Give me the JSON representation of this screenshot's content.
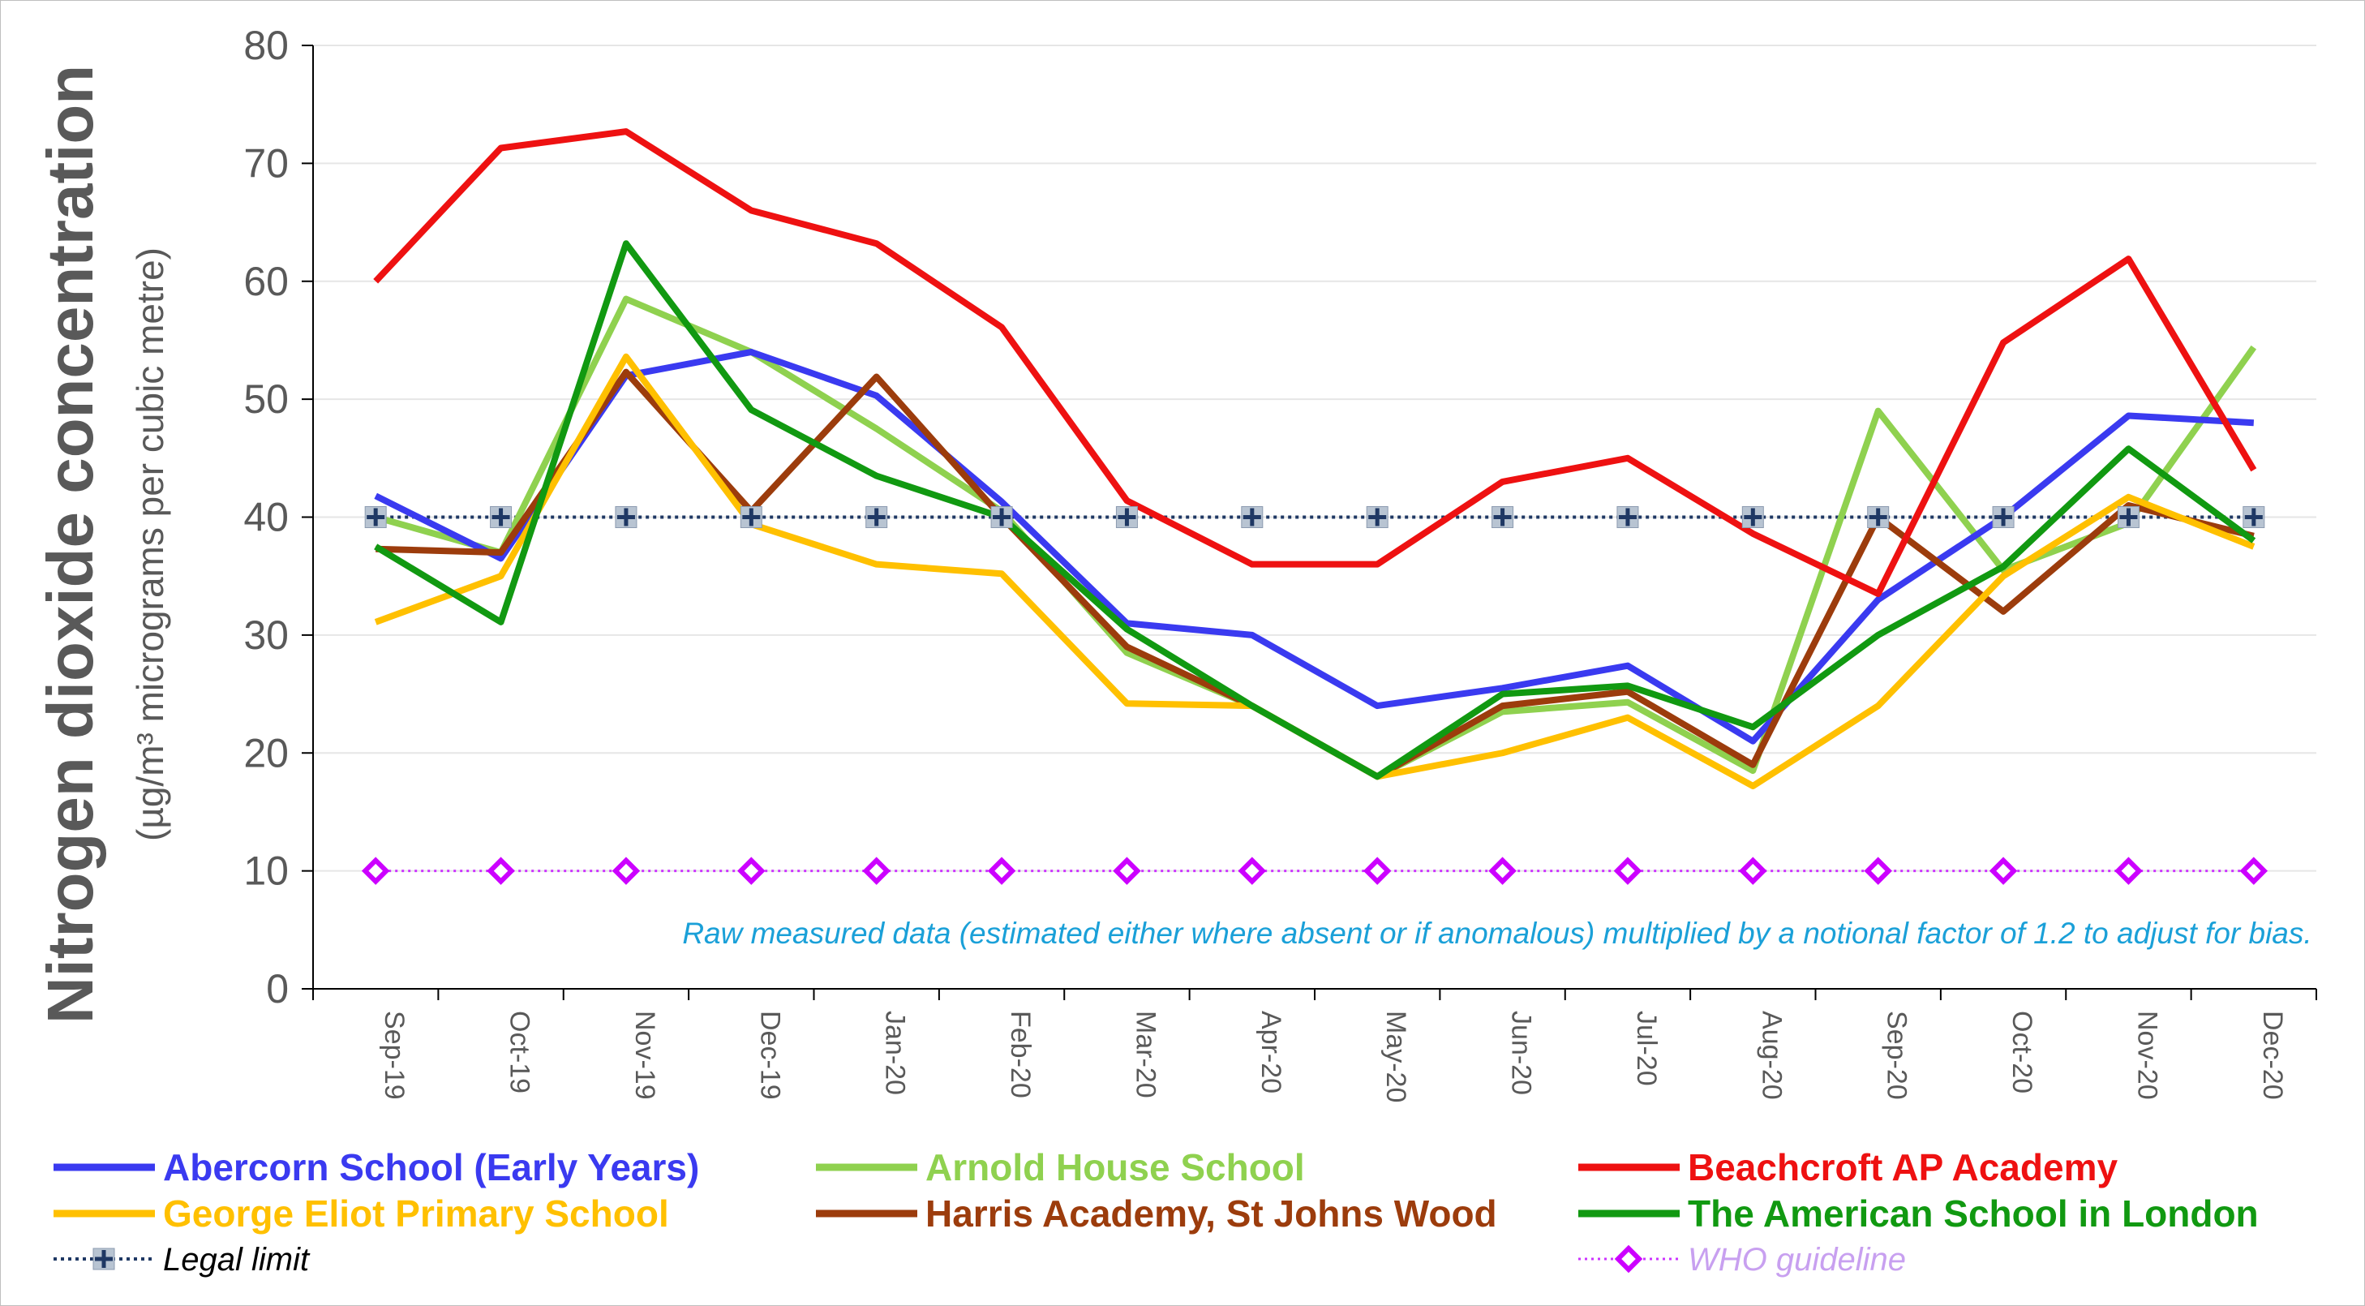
{
  "chart_data": {
    "type": "line",
    "ylabel": "Nitrogen dioxide concentration",
    "ylabel_sub": "(µg/m³ micrograms per cubic metre)",
    "ylim": [
      0,
      80
    ],
    "yticks": [
      "0",
      "10",
      "20",
      "30",
      "40",
      "50",
      "60",
      "70",
      "80"
    ],
    "grid": true,
    "legend_placement": "bottom",
    "annotation": "Raw measured data (estimated either where absent or if anomalous) multiplied by a notional factor of 1.2 to adjust for bias.",
    "categories": [
      "Sep-19",
      "Oct-19",
      "Nov-19",
      "Dec-19",
      "Jan-20",
      "Feb-20",
      "Mar-20",
      "Apr-20",
      "May-20",
      "Jun-20",
      "Jul-20",
      "Aug-20",
      "Sep-20",
      "Oct-20",
      "Nov-20",
      "Dec-20"
    ],
    "series": [
      {
        "name": "Abercorn School (Early Years)",
        "color": "#3a3af0",
        "values": [
          41.8,
          36.5,
          52.0,
          54.0,
          50.3,
          41.3,
          31.0,
          30.0,
          24.0,
          25.5,
          27.4,
          21.0,
          33.0,
          40.0,
          48.6,
          48.0
        ]
      },
      {
        "name": "Arnold House School",
        "color": "#8fd14f",
        "values": [
          40.0,
          37.0,
          58.5,
          54.0,
          47.5,
          40.5,
          28.5,
          24.0,
          18.0,
          23.5,
          24.3,
          18.5,
          49.0,
          35.5,
          39.5,
          54.4
        ]
      },
      {
        "name": "Beachcroft AP Academy",
        "color": "#ee1111",
        "values": [
          60.0,
          71.3,
          72.7,
          66.0,
          63.2,
          56.1,
          41.4,
          36.0,
          36.0,
          43.0,
          45.0,
          38.6,
          33.5,
          54.8,
          61.9,
          44.0
        ]
      },
      {
        "name": "George Eliot Primary School",
        "color": "#ffc000",
        "values": [
          31.1,
          35.0,
          53.6,
          39.4,
          36.0,
          35.2,
          24.2,
          24.0,
          18.0,
          20.0,
          23.0,
          17.2,
          24.0,
          35.0,
          41.7,
          37.5
        ]
      },
      {
        "name": "Harris Academy, St Johns Wood",
        "color": "#9c3c0c",
        "values": [
          37.3,
          37.0,
          52.3,
          40.5,
          51.9,
          40.0,
          29.0,
          24.0,
          18.0,
          24.0,
          25.2,
          19.0,
          40.0,
          32.0,
          41.0,
          38.4
        ]
      },
      {
        "name": "The American School in London",
        "color": "#119911",
        "values": [
          37.5,
          31.1,
          63.2,
          49.1,
          43.5,
          40.0,
          30.5,
          24.0,
          18.0,
          25.0,
          25.7,
          22.2,
          30.0,
          35.8,
          45.8,
          38.0
        ]
      },
      {
        "name": "Legal limit",
        "color": "#1f3864",
        "values": [
          40,
          40,
          40,
          40,
          40,
          40,
          40,
          40,
          40,
          40,
          40,
          40,
          40,
          40,
          40,
          40
        ]
      },
      {
        "name": "WHO guideline",
        "color": "#cc33ff",
        "values": [
          10,
          10,
          10,
          10,
          10,
          10,
          10,
          10,
          10,
          10,
          10,
          10,
          10,
          10,
          10,
          10
        ]
      }
    ]
  },
  "legend_text_colors": [
    "#3a3af0",
    "#8fd14f",
    "#ee1111",
    "#ffc000",
    "#9c3c0c",
    "#119911",
    "#000000",
    "#c8a0f0"
  ]
}
